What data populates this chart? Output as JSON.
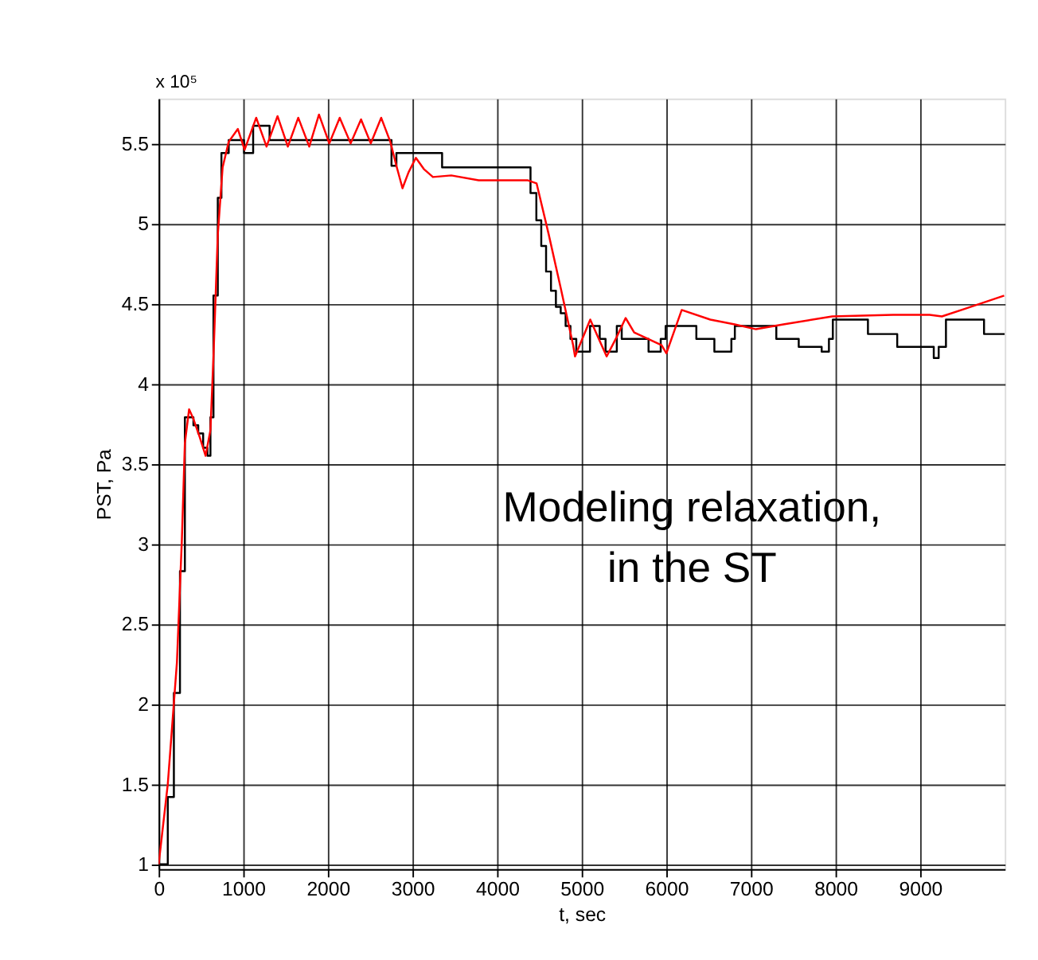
{
  "chart_data": {
    "type": "line",
    "xlabel": "t, sec",
    "ylabel": "PST, Pa",
    "annotations": [
      "x 10⁵",
      "Modeling relaxation,\nin the ST"
    ],
    "xlim": [
      0,
      10000
    ],
    "ylim": [
      0.97,
      5.78
    ],
    "xticks": [
      0,
      1000,
      2000,
      3000,
      4000,
      5000,
      6000,
      7000,
      8000,
      9000
    ],
    "yticks": [
      1,
      1.5,
      2,
      2.5,
      3,
      3.5,
      4,
      4.5,
      5,
      5.5
    ],
    "grid": true,
    "legend": false,
    "marker": "none",
    "line_style": "solid",
    "series": [
      {
        "type": "step",
        "color": "#000000",
        "x": [
          0,
          108,
          180,
          252,
          310,
          411,
          468,
          526,
          577,
          612,
          648,
          699,
          742,
          828,
          1009,
          1117,
          1311,
          2752,
          2810,
          3350,
          4337,
          4395,
          4464,
          4522,
          4579,
          4637,
          4695,
          4752,
          4810,
          4867,
          4936,
          5098,
          5213,
          5282,
          5415,
          5473,
          5790,
          5934,
          5992,
          6355,
          6568,
          6769,
          6810,
          7300,
          7565,
          7836,
          7922,
          7968,
          8383,
          8729,
          9161,
          9219,
          9305,
          9755,
          10000
        ],
        "values": [
          1.0,
          1.42,
          2.07,
          2.83,
          3.79,
          3.74,
          3.69,
          3.6,
          3.55,
          3.79,
          4.55,
          5.16,
          5.44,
          5.52,
          5.44,
          5.61,
          5.52,
          5.36,
          5.44,
          5.35,
          5.35,
          5.19,
          5.02,
          4.86,
          4.7,
          4.58,
          4.48,
          4.44,
          4.36,
          4.28,
          4.2,
          4.36,
          4.28,
          4.2,
          4.36,
          4.28,
          4.2,
          4.28,
          4.36,
          4.28,
          4.2,
          4.28,
          4.36,
          4.28,
          4.23,
          4.2,
          4.28,
          4.4,
          4.31,
          4.23,
          4.16,
          4.23,
          4.4,
          4.31,
          4.31
        ]
      },
      {
        "color": "#ff0000",
        "x": [
          0,
          108,
          216,
          274,
          310,
          360,
          411,
          483,
          555,
          612,
          648,
          699,
          756,
          828,
          936,
          1016,
          1153,
          1275,
          1405,
          1527,
          1650,
          1780,
          1895,
          2017,
          2140,
          2269,
          2392,
          2507,
          2630,
          2738,
          2810,
          2882,
          2954,
          3040,
          3134,
          3242,
          3458,
          3782,
          4359,
          4467,
          4611,
          4755,
          4899,
          4921,
          5007,
          5101,
          5202,
          5295,
          5403,
          5519,
          5620,
          5944,
          6001,
          6088,
          6182,
          6520,
          6808,
          7060,
          7384,
          7960,
          8681,
          9112,
          9257,
          9545,
          9993
        ],
        "values": [
          1.0,
          1.5,
          2.26,
          3.02,
          3.63,
          3.84,
          3.78,
          3.67,
          3.55,
          3.71,
          4.17,
          4.93,
          5.35,
          5.51,
          5.59,
          5.46,
          5.66,
          5.48,
          5.67,
          5.48,
          5.66,
          5.48,
          5.68,
          5.5,
          5.66,
          5.5,
          5.65,
          5.5,
          5.66,
          5.51,
          5.36,
          5.22,
          5.32,
          5.41,
          5.34,
          5.29,
          5.3,
          5.27,
          5.27,
          5.25,
          4.93,
          4.59,
          4.24,
          4.17,
          4.28,
          4.4,
          4.28,
          4.17,
          4.28,
          4.41,
          4.32,
          4.24,
          4.19,
          4.32,
          4.46,
          4.4,
          4.37,
          4.34,
          4.37,
          4.42,
          4.43,
          4.43,
          4.42,
          4.47,
          4.55
        ]
      }
    ]
  }
}
